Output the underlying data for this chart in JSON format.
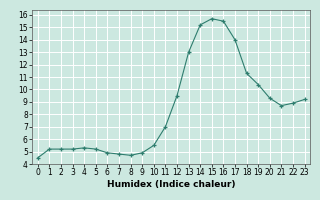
{
  "x": [
    0,
    1,
    2,
    3,
    4,
    5,
    6,
    7,
    8,
    9,
    10,
    11,
    12,
    13,
    14,
    15,
    16,
    17,
    18,
    19,
    20,
    21,
    22,
    23
  ],
  "y": [
    4.5,
    5.2,
    5.2,
    5.2,
    5.3,
    5.2,
    4.9,
    4.8,
    4.7,
    4.9,
    5.5,
    7.0,
    9.5,
    13.0,
    15.2,
    15.7,
    15.5,
    14.0,
    11.3,
    10.4,
    9.3,
    8.7,
    8.9,
    9.2
  ],
  "xlabel": "Humidex (Indice chaleur)",
  "xlim": [
    -0.5,
    23.5
  ],
  "ylim": [
    4,
    16.4
  ],
  "yticks": [
    4,
    5,
    6,
    7,
    8,
    9,
    10,
    11,
    12,
    13,
    14,
    15,
    16
  ],
  "xticks": [
    0,
    1,
    2,
    3,
    4,
    5,
    6,
    7,
    8,
    9,
    10,
    11,
    12,
    13,
    14,
    15,
    16,
    17,
    18,
    19,
    20,
    21,
    22,
    23
  ],
  "line_color": "#2e7d6e",
  "marker_color": "#2e7d6e",
  "bg_color": "#cce8e0",
  "grid_color": "#ffffff",
  "label_fontsize": 6.5,
  "tick_fontsize": 5.5
}
